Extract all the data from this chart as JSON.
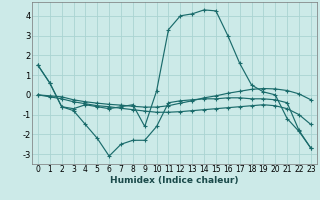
{
  "xlabel": "Humidex (Indice chaleur)",
  "xlim": [
    -0.5,
    23.5
  ],
  "ylim": [
    -3.5,
    4.7
  ],
  "yticks": [
    -3,
    -2,
    -1,
    0,
    1,
    2,
    3,
    4
  ],
  "xticks": [
    0,
    1,
    2,
    3,
    4,
    5,
    6,
    7,
    8,
    9,
    10,
    11,
    12,
    13,
    14,
    15,
    16,
    17,
    18,
    19,
    20,
    21,
    22,
    23
  ],
  "background_color": "#cceae8",
  "grid_color": "#aad4d2",
  "line_color": "#1a6b6b",
  "series": [
    {
      "x": [
        0,
        1,
        2,
        3,
        4,
        5,
        6,
        7,
        8,
        9,
        10,
        11,
        12,
        13,
        14,
        15,
        16,
        17,
        18,
        19,
        20,
        21,
        22,
        23
      ],
      "y": [
        1.5,
        0.6,
        -0.6,
        -0.7,
        -0.5,
        -0.6,
        -0.7,
        -0.6,
        -0.5,
        -1.6,
        0.2,
        3.3,
        4.0,
        4.1,
        4.3,
        4.25,
        3.0,
        1.6,
        0.5,
        0.15,
        0.0,
        -1.2,
        -1.85,
        -2.7
      ]
    },
    {
      "x": [
        0,
        1,
        2,
        3,
        4,
        5,
        6,
        7,
        8,
        9,
        10,
        11,
        12,
        13,
        14,
        15,
        16,
        17,
        18,
        19,
        20,
        21,
        22,
        23
      ],
      "y": [
        1.5,
        0.6,
        -0.6,
        -0.8,
        -1.5,
        -2.2,
        -3.1,
        -2.5,
        -2.3,
        -2.3,
        -1.6,
        -0.4,
        -0.3,
        -0.25,
        -0.2,
        -0.2,
        -0.15,
        -0.15,
        -0.2,
        -0.2,
        -0.25,
        -0.4,
        -1.8,
        -2.7
      ]
    },
    {
      "x": [
        0,
        1,
        2,
        3,
        4,
        5,
        6,
        7,
        8,
        9,
        10,
        11,
        12,
        13,
        14,
        15,
        16,
        17,
        18,
        19,
        20,
        21,
        22,
        23
      ],
      "y": [
        0.0,
        -0.05,
        -0.1,
        -0.25,
        -0.35,
        -0.42,
        -0.48,
        -0.52,
        -0.58,
        -0.62,
        -0.62,
        -0.55,
        -0.42,
        -0.3,
        -0.15,
        -0.05,
        0.08,
        0.18,
        0.28,
        0.32,
        0.3,
        0.22,
        0.05,
        -0.25
      ]
    },
    {
      "x": [
        0,
        1,
        2,
        3,
        4,
        5,
        6,
        7,
        8,
        9,
        10,
        11,
        12,
        13,
        14,
        15,
        16,
        17,
        18,
        19,
        20,
        21,
        22,
        23
      ],
      "y": [
        0.0,
        -0.1,
        -0.2,
        -0.35,
        -0.45,
        -0.55,
        -0.6,
        -0.68,
        -0.75,
        -0.82,
        -0.88,
        -0.88,
        -0.85,
        -0.8,
        -0.75,
        -0.7,
        -0.65,
        -0.6,
        -0.55,
        -0.5,
        -0.55,
        -0.7,
        -1.0,
        -1.5
      ]
    }
  ]
}
